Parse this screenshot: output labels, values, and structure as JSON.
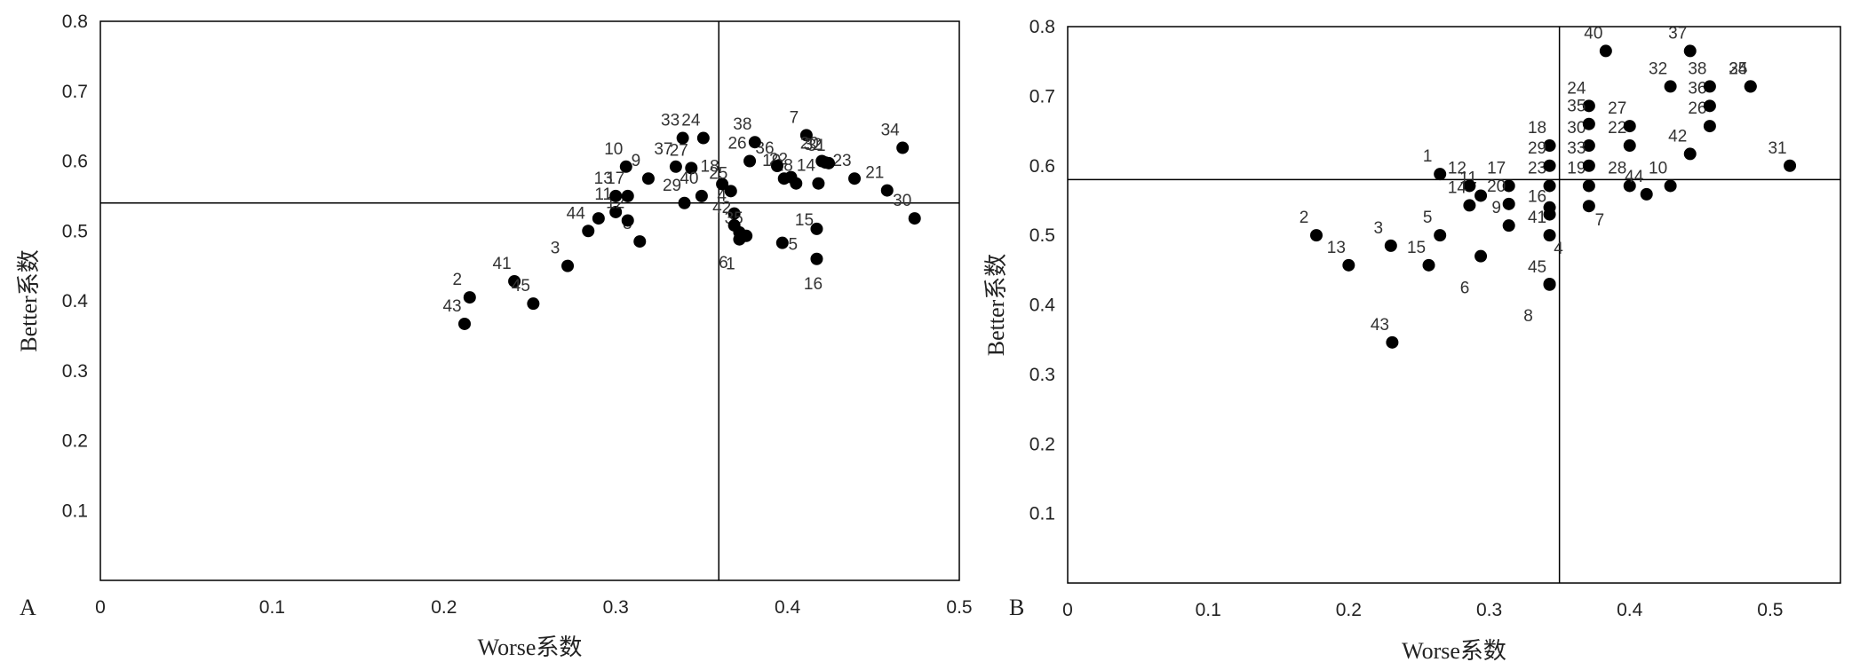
{
  "chart_data": [
    {
      "type": "scatter",
      "panel_label": "A",
      "xlabel": "Worse系数",
      "ylabel": "Better系数",
      "xlim": [
        0,
        0.5
      ],
      "ylim": [
        0,
        0.8
      ],
      "x_ticks": [
        "0",
        "0.1",
        "0.2",
        "0.3",
        "0.4",
        "0.5"
      ],
      "y_ticks": [
        "0.1",
        "0.2",
        "0.3",
        "0.4",
        "0.5",
        "0.6",
        "0.7",
        "0.8"
      ],
      "reference_lines": {
        "x": 0.36,
        "y": 0.54
      },
      "grid": false,
      "points": [
        {
          "label": "1",
          "x": 0.372,
          "y": 0.488
        },
        {
          "label": "2",
          "x": 0.215,
          "y": 0.405
        },
        {
          "label": "3",
          "x": 0.272,
          "y": 0.45
        },
        {
          "label": "4",
          "x": 0.369,
          "y": 0.525
        },
        {
          "label": "5",
          "x": 0.397,
          "y": 0.483
        },
        {
          "label": "6",
          "x": 0.372,
          "y": 0.498
        },
        {
          "label": "7",
          "x": 0.411,
          "y": 0.637
        },
        {
          "label": "8",
          "x": 0.314,
          "y": 0.485
        },
        {
          "label": "9",
          "x": 0.319,
          "y": 0.575
        },
        {
          "label": "10",
          "x": 0.306,
          "y": 0.592
        },
        {
          "label": "11",
          "x": 0.3,
          "y": 0.527
        },
        {
          "label": "12",
          "x": 0.307,
          "y": 0.515
        },
        {
          "label": "13",
          "x": 0.3,
          "y": 0.55
        },
        {
          "label": "14",
          "x": 0.418,
          "y": 0.568
        },
        {
          "label": "15",
          "x": 0.417,
          "y": 0.503
        },
        {
          "label": "16",
          "x": 0.417,
          "y": 0.46
        },
        {
          "label": "17",
          "x": 0.307,
          "y": 0.55
        },
        {
          "label": "18",
          "x": 0.362,
          "y": 0.567
        },
        {
          "label": "19",
          "x": 0.398,
          "y": 0.575
        },
        {
          "label": "20",
          "x": 0.42,
          "y": 0.6
        },
        {
          "label": "21",
          "x": 0.458,
          "y": 0.558
        },
        {
          "label": "22",
          "x": 0.402,
          "y": 0.577
        },
        {
          "label": "23",
          "x": 0.439,
          "y": 0.575
        },
        {
          "label": "24",
          "x": 0.351,
          "y": 0.633
        },
        {
          "label": "25",
          "x": 0.367,
          "y": 0.557
        },
        {
          "label": "26",
          "x": 0.378,
          "y": 0.6
        },
        {
          "label": "27",
          "x": 0.344,
          "y": 0.59
        },
        {
          "label": "28",
          "x": 0.405,
          "y": 0.568
        },
        {
          "label": "29",
          "x": 0.34,
          "y": 0.54
        },
        {
          "label": "30",
          "x": 0.474,
          "y": 0.518
        },
        {
          "label": "31",
          "x": 0.424,
          "y": 0.597
        },
        {
          "label": "32",
          "x": 0.422,
          "y": 0.598
        },
        {
          "label": "33",
          "x": 0.339,
          "y": 0.633
        },
        {
          "label": "34",
          "x": 0.467,
          "y": 0.619
        },
        {
          "label": "35",
          "x": 0.376,
          "y": 0.493
        },
        {
          "label": "36",
          "x": 0.394,
          "y": 0.593
        },
        {
          "label": "37",
          "x": 0.335,
          "y": 0.592
        },
        {
          "label": "38",
          "x": 0.381,
          "y": 0.627
        },
        {
          "label": "40",
          "x": 0.35,
          "y": 0.55
        },
        {
          "label": "41",
          "x": 0.241,
          "y": 0.428
        },
        {
          "label": "42",
          "x": 0.369,
          "y": 0.508
        },
        {
          "label": "43",
          "x": 0.212,
          "y": 0.367
        },
        {
          "label": "44",
          "x": 0.284,
          "y": 0.5
        },
        {
          "label": "45",
          "x": 0.252,
          "y": 0.396
        },
        {
          "label": "",
          "x": 0.29,
          "y": 0.518
        }
      ]
    },
    {
      "type": "scatter",
      "panel_label": "B",
      "xlabel": "Worse系数",
      "ylabel": "Better系数",
      "xlim": [
        0,
        0.55
      ],
      "ylim": [
        0,
        0.8
      ],
      "x_ticks": [
        "0",
        "0.1",
        "0.2",
        "0.3",
        "0.4",
        "0.5"
      ],
      "y_ticks": [
        "0.1",
        "0.2",
        "0.3",
        "0.4",
        "0.5",
        "0.6",
        "0.7",
        "0.8"
      ],
      "reference_lines": {
        "x": 0.35,
        "y": 0.58
      },
      "grid": false,
      "points": [
        {
          "label": "1",
          "x": 0.265,
          "y": 0.588
        },
        {
          "label": "2",
          "x": 0.177,
          "y": 0.5
        },
        {
          "label": "3",
          "x": 0.23,
          "y": 0.485
        },
        {
          "label": "4",
          "x": 0.343,
          "y": 0.54
        },
        {
          "label": "5",
          "x": 0.265,
          "y": 0.5
        },
        {
          "label": "6",
          "x": 0.294,
          "y": 0.47
        },
        {
          "label": "7",
          "x": 0.371,
          "y": 0.542
        },
        {
          "label": "8",
          "x": 0.343,
          "y": 0.43
        },
        {
          "label": "9",
          "x": 0.314,
          "y": 0.514
        },
        {
          "label": "10",
          "x": 0.429,
          "y": 0.571
        },
        {
          "label": "11",
          "x": 0.294,
          "y": 0.557
        },
        {
          "label": "12",
          "x": 0.286,
          "y": 0.571
        },
        {
          "label": "13",
          "x": 0.2,
          "y": 0.457
        },
        {
          "label": "14",
          "x": 0.286,
          "y": 0.543
        },
        {
          "label": "15",
          "x": 0.257,
          "y": 0.457
        },
        {
          "label": "16",
          "x": 0.343,
          "y": 0.53
        },
        {
          "label": "17",
          "x": 0.314,
          "y": 0.571
        },
        {
          "label": "18",
          "x": 0.343,
          "y": 0.629
        },
        {
          "label": "19",
          "x": 0.371,
          "y": 0.571
        },
        {
          "label": "20",
          "x": 0.314,
          "y": 0.545
        },
        {
          "label": "22",
          "x": 0.4,
          "y": 0.629
        },
        {
          "label": "23",
          "x": 0.343,
          "y": 0.571
        },
        {
          "label": "24",
          "x": 0.371,
          "y": 0.686
        },
        {
          "label": "25",
          "x": 0.486,
          "y": 0.714
        },
        {
          "label": "26",
          "x": 0.457,
          "y": 0.657
        },
        {
          "label": "27",
          "x": 0.4,
          "y": 0.657
        },
        {
          "label": "28",
          "x": 0.4,
          "y": 0.571
        },
        {
          "label": "29",
          "x": 0.343,
          "y": 0.6
        },
        {
          "label": "30",
          "x": 0.371,
          "y": 0.629
        },
        {
          "label": "31",
          "x": 0.514,
          "y": 0.6
        },
        {
          "label": "32",
          "x": 0.429,
          "y": 0.714
        },
        {
          "label": "33",
          "x": 0.371,
          "y": 0.6
        },
        {
          "label": "34",
          "x": 0.486,
          "y": 0.714
        },
        {
          "label": "35",
          "x": 0.371,
          "y": 0.66
        },
        {
          "label": "36",
          "x": 0.457,
          "y": 0.686
        },
        {
          "label": "37",
          "x": 0.443,
          "y": 0.765
        },
        {
          "label": "38",
          "x": 0.457,
          "y": 0.714
        },
        {
          "label": "40",
          "x": 0.383,
          "y": 0.765
        },
        {
          "label": "41",
          "x": 0.343,
          "y": 0.5
        },
        {
          "label": "42",
          "x": 0.443,
          "y": 0.617
        },
        {
          "label": "43",
          "x": 0.231,
          "y": 0.346
        },
        {
          "label": "44",
          "x": 0.412,
          "y": 0.559
        },
        {
          "label": "45",
          "x": 0.343,
          "y": 0.429
        }
      ]
    }
  ]
}
